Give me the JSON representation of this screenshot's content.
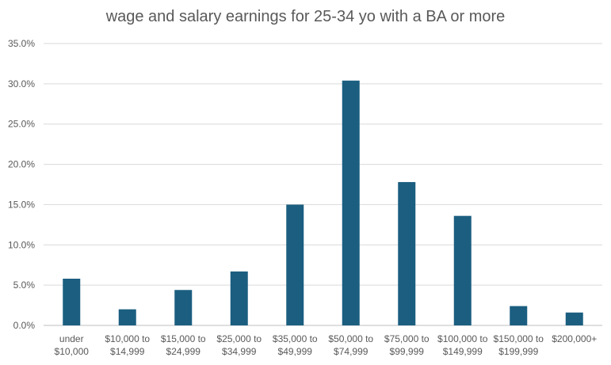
{
  "chart_data": {
    "type": "bar",
    "title": "wage and salary earnings for 25-34 yo with a BA or more",
    "xlabel": "",
    "ylabel": "",
    "categories": [
      [
        "under",
        "$10,000"
      ],
      [
        "$10,000 to",
        "$14,999"
      ],
      [
        "$15,000 to",
        "$24,999"
      ],
      [
        "$25,000 to",
        "$34,999"
      ],
      [
        "$35,000 to",
        "$49,999"
      ],
      [
        "$50,000 to",
        "$74,999"
      ],
      [
        "$75,000 to",
        "$99,999"
      ],
      [
        "$100,000 to",
        "$149,999"
      ],
      [
        "$150,000 to",
        "$199,999"
      ],
      [
        "$200,000+"
      ]
    ],
    "values": [
      5.8,
      2.0,
      4.4,
      6.7,
      15.0,
      30.4,
      17.8,
      13.6,
      2.4,
      1.6
    ],
    "ylim": [
      0,
      35
    ],
    "yticks": [
      0,
      5,
      10,
      15,
      20,
      25,
      30,
      35
    ],
    "ytick_labels": [
      "0.0%",
      "5.0%",
      "10.0%",
      "15.0%",
      "20.0%",
      "25.0%",
      "30.0%",
      "35.0%"
    ],
    "grid": true,
    "bar_color": "#1b5e80"
  }
}
